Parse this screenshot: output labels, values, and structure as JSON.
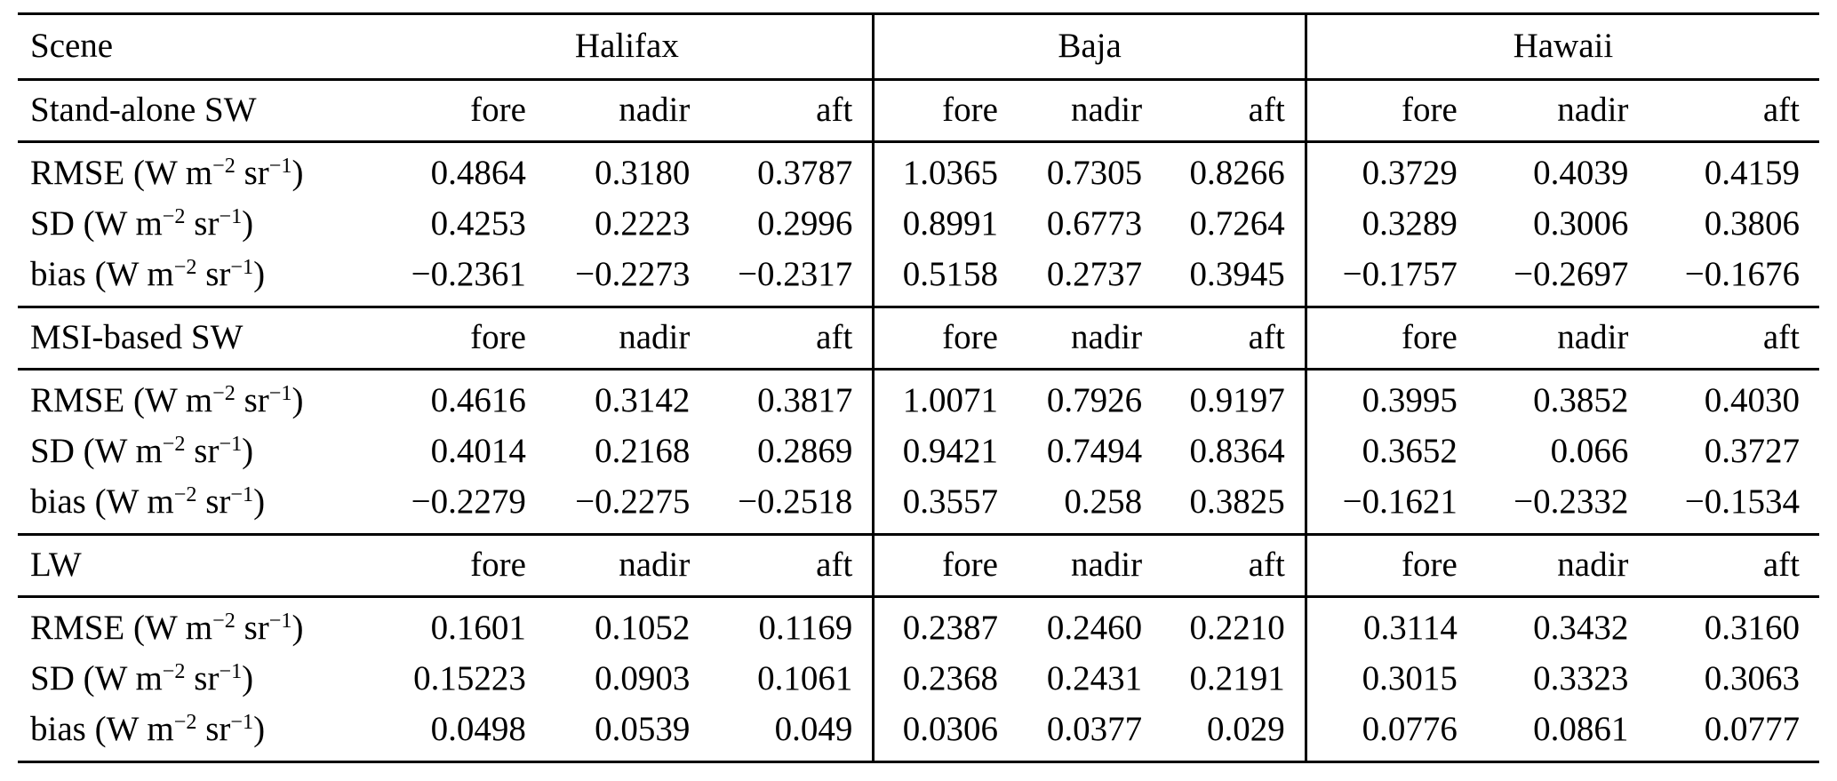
{
  "table": {
    "corner_label": "Scene",
    "scene_groups": [
      "Halifax",
      "Baja",
      "Hawaii"
    ],
    "view_headers": [
      "fore",
      "nadir",
      "aft"
    ],
    "unit_parts": {
      "pre": "(W m",
      "sup1": "−2",
      "mid": " sr",
      "sup2": "−1",
      "post": ")"
    },
    "sections": [
      {
        "label": "Stand-alone SW",
        "rows": [
          {
            "metric": "RMSE",
            "values": [
              "0.4864",
              "0.3180",
              "0.3787",
              "1.0365",
              "0.7305",
              "0.8266",
              "0.3729",
              "0.4039",
              "0.4159"
            ]
          },
          {
            "metric": "SD",
            "values": [
              "0.4253",
              "0.2223",
              "0.2996",
              "0.8991",
              "0.6773",
              "0.7264",
              "0.3289",
              "0.3006",
              "0.3806"
            ]
          },
          {
            "metric": "bias",
            "values": [
              "−0.2361",
              "−0.2273",
              "−0.2317",
              "0.5158",
              "0.2737",
              "0.3945",
              "−0.1757",
              "−0.2697",
              "−0.1676"
            ]
          }
        ]
      },
      {
        "label": "MSI-based SW",
        "rows": [
          {
            "metric": "RMSE",
            "values": [
              "0.4616",
              "0.3142",
              "0.3817",
              "1.0071",
              "0.7926",
              "0.9197",
              "0.3995",
              "0.3852",
              "0.4030"
            ]
          },
          {
            "metric": "SD",
            "values": [
              "0.4014",
              "0.2168",
              "0.2869",
              "0.9421",
              "0.7494",
              "0.8364",
              "0.3652",
              "0.066",
              "0.3727"
            ]
          },
          {
            "metric": "bias",
            "values": [
              "−0.2279",
              "−0.2275",
              "−0.2518",
              "0.3557",
              "0.258",
              "0.3825",
              "−0.1621",
              "−0.2332",
              "−0.1534"
            ]
          }
        ]
      },
      {
        "label": "LW",
        "rows": [
          {
            "metric": "RMSE",
            "values": [
              "0.1601",
              "0.1052",
              "0.1169",
              "0.2387",
              "0.2460",
              "0.2210",
              "0.3114",
              "0.3432",
              "0.3160"
            ]
          },
          {
            "metric": "SD",
            "values": [
              "0.15223",
              "0.0903",
              "0.1061",
              "0.2368",
              "0.2431",
              "0.2191",
              "0.3015",
              "0.3323",
              "0.3063"
            ]
          },
          {
            "metric": "bias",
            "values": [
              "0.0498",
              "0.0539",
              "0.049",
              "0.0306",
              "0.0377",
              "0.029",
              "0.0776",
              "0.0861",
              "0.0777"
            ]
          }
        ]
      }
    ]
  }
}
